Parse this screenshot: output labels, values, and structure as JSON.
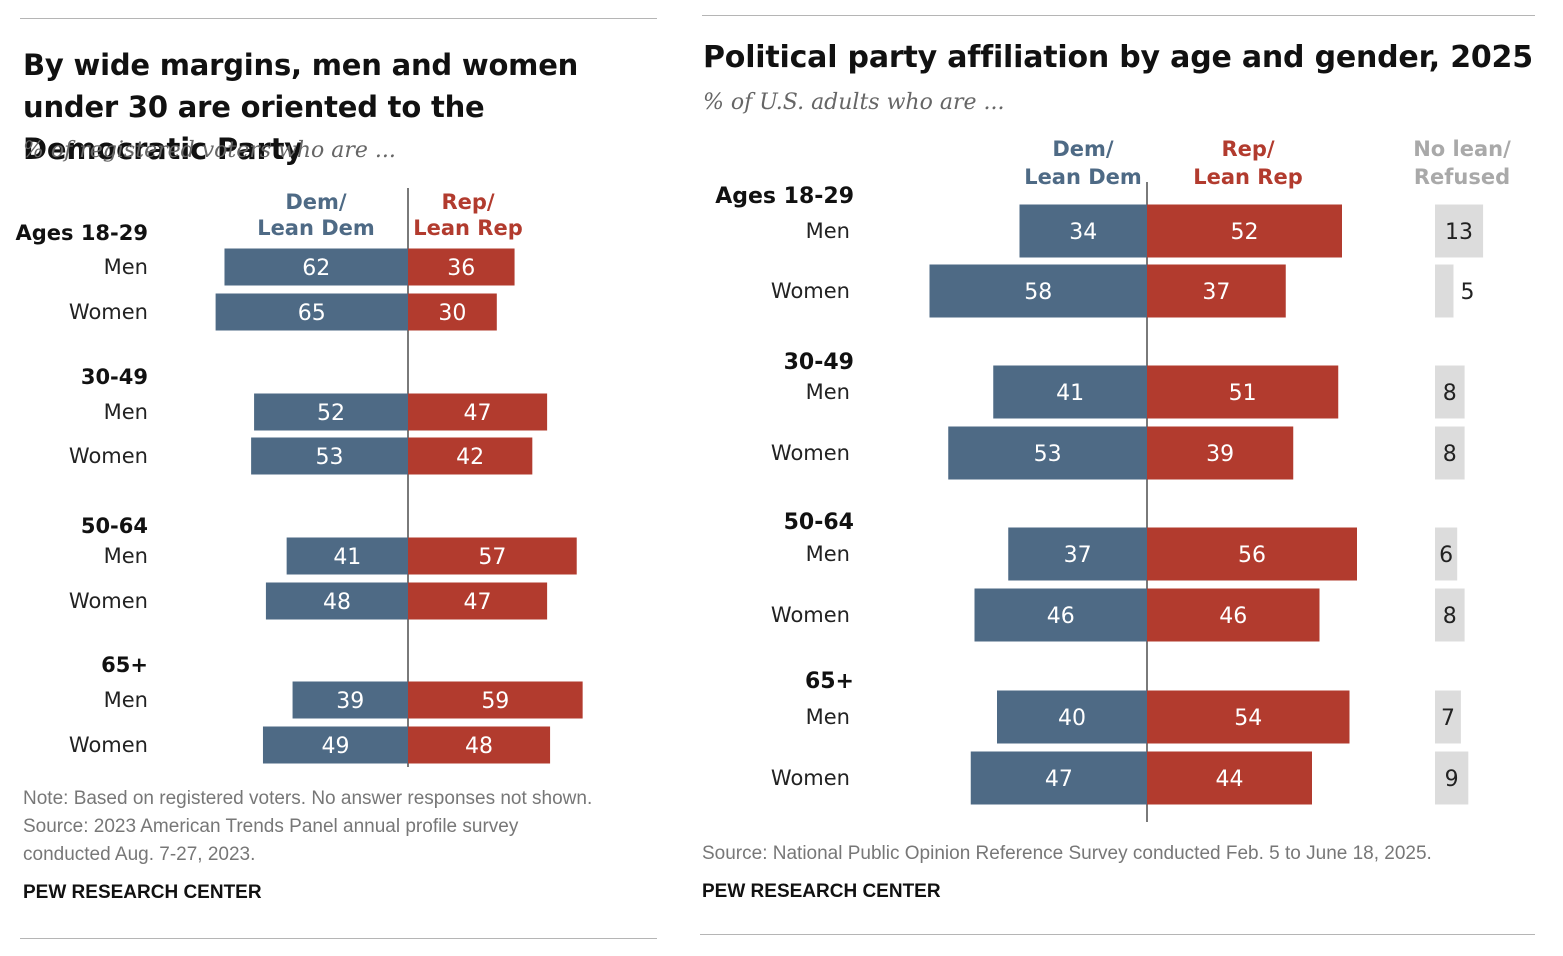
{
  "colors": {
    "dem": "#4e6a85",
    "rep": "#b23b2e",
    "none": "#dcdcdc",
    "dem_text": "#4e6a85",
    "rep_text": "#b23b2e",
    "none_text": "#a9a9a9"
  },
  "chart_data": [
    {
      "type": "bar",
      "title": "By wide margins, men and women under 30 are oriented to the Democratic Party",
      "subtitle": "% of registered voters who are ...",
      "columns": {
        "dem": "Dem/ Lean Dem",
        "rep": "Rep/ Lean Rep"
      },
      "groups": [
        {
          "label": "Ages 18-29",
          "rows": [
            {
              "label": "Men",
              "dem": 62,
              "rep": 36
            },
            {
              "label": "Women",
              "dem": 65,
              "rep": 30
            }
          ]
        },
        {
          "label": "30-49",
          "rows": [
            {
              "label": "Men",
              "dem": 52,
              "rep": 47
            },
            {
              "label": "Women",
              "dem": 53,
              "rep": 42
            }
          ]
        },
        {
          "label": "50-64",
          "rows": [
            {
              "label": "Men",
              "dem": 41,
              "rep": 57
            },
            {
              "label": "Women",
              "dem": 48,
              "rep": 47
            }
          ]
        },
        {
          "label": "65+",
          "rows": [
            {
              "label": "Men",
              "dem": 39,
              "rep": 59
            },
            {
              "label": "Women",
              "dem": 49,
              "rep": 48
            }
          ]
        }
      ],
      "notes": [
        "Note: Based on registered voters. No answer responses not shown.",
        "Source: 2023 American Trends Panel annual profile survey",
        "conducted Aug. 7-27, 2023."
      ],
      "brand": "PEW RESEARCH CENTER"
    },
    {
      "type": "bar",
      "title": "Political party affiliation by age and gender, 2025",
      "subtitle": "% of U.S. adults who are ...",
      "columns": {
        "dem": "Dem/ Lean Dem",
        "rep": "Rep/ Lean Rep",
        "none": "No lean/ Refused"
      },
      "groups": [
        {
          "label": "Ages 18-29",
          "rows": [
            {
              "label": "Men",
              "dem": 34,
              "rep": 52,
              "none": 13
            },
            {
              "label": "Women",
              "dem": 58,
              "rep": 37,
              "none": 5
            }
          ]
        },
        {
          "label": "30-49",
          "rows": [
            {
              "label": "Men",
              "dem": 41,
              "rep": 51,
              "none": 8
            },
            {
              "label": "Women",
              "dem": 53,
              "rep": 39,
              "none": 8
            }
          ]
        },
        {
          "label": "50-64",
          "rows": [
            {
              "label": "Men",
              "dem": 37,
              "rep": 56,
              "none": 6
            },
            {
              "label": "Women",
              "dem": 46,
              "rep": 46,
              "none": 8
            }
          ]
        },
        {
          "label": "65+",
          "rows": [
            {
              "label": "Men",
              "dem": 40,
              "rep": 54,
              "none": 7
            },
            {
              "label": "Women",
              "dem": 47,
              "rep": 44,
              "none": 9
            }
          ]
        }
      ],
      "notes": [
        "Source: National Public Opinion Reference Survey conducted Feb. 5 to June 18, 2025."
      ],
      "brand": "PEW RESEARCH CENTER"
    }
  ]
}
